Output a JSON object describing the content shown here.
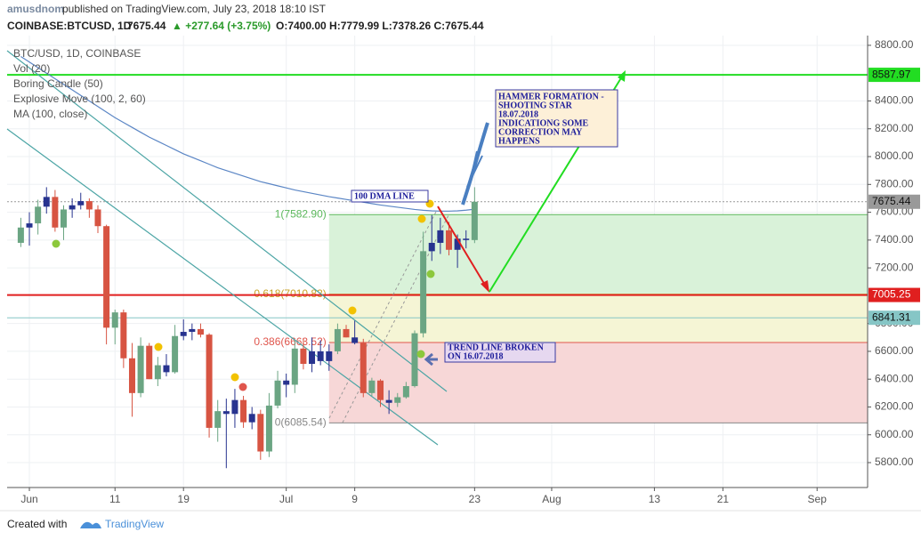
{
  "header": {
    "author": "amusdnom",
    "published": "published on TradingView.com, July 23, 2018 18:10 IST",
    "symbol": "COINBASE:BTCUSD, 1D",
    "last": "7675.44",
    "change": "▲ +277.64 (+3.75%)",
    "ohlc": "O:7400.00 H:7779.99 L:7378.26 C:7675.44"
  },
  "chart_data": {
    "type": "candlestick",
    "legend": [
      "BTC/USD, 1D, COINBASE",
      "Vol (20)",
      "Boring Candle (50)",
      "Explosive Move (100, 2, 60)",
      "MA (100, close)"
    ],
    "x": [
      -1,
      0,
      1,
      2,
      3,
      4,
      5,
      6,
      7,
      8,
      9,
      10,
      11,
      12,
      13,
      14,
      15,
      16,
      17,
      18,
      19,
      20,
      21,
      22,
      23,
      24,
      25,
      26,
      27,
      28,
      29,
      30,
      31,
      32,
      33,
      34,
      35,
      36,
      37,
      38,
      39,
      40,
      41,
      42,
      43,
      44,
      45,
      46,
      47,
      48,
      49,
      50,
      51,
      52
    ],
    "open": [
      7380,
      7490,
      7520,
      7640,
      7710,
      7490,
      7620,
      7650,
      7680,
      7620,
      7500,
      6770,
      6880,
      6550,
      6300,
      6640,
      6400,
      6500,
      6450,
      6710,
      6740,
      6760,
      6720,
      6050,
      6170,
      6150,
      6250,
      6090,
      6150,
      5880,
      6210,
      6390,
      6360,
      6620,
      6510,
      6600,
      6530,
      6600,
      6760,
      6700,
      6660,
      6300,
      6390,
      6250,
      6230,
      6270,
      6350,
      6730,
      7320,
      7380,
      7470,
      7330,
      7410,
      7400
    ],
    "high": [
      7560,
      7600,
      7690,
      7780,
      7760,
      7650,
      7700,
      7740,
      7700,
      7650,
      7510,
      6900,
      6900,
      6660,
      6700,
      6660,
      6560,
      6580,
      6790,
      6830,
      6800,
      6800,
      6730,
      6250,
      6260,
      6330,
      6280,
      6200,
      6180,
      6300,
      6460,
      6440,
      6680,
      6690,
      6700,
      6680,
      6650,
      6800,
      6790,
      6820,
      6690,
      6410,
      6400,
      6320,
      6300,
      6380,
      6750,
      7460,
      7580,
      7560,
      7530,
      7440,
      7470,
      7779.99
    ],
    "low": [
      7350,
      7360,
      7440,
      7590,
      7460,
      7400,
      7560,
      7620,
      7560,
      7450,
      6650,
      6650,
      6480,
      6130,
      6270,
      6400,
      6350,
      6420,
      6440,
      6680,
      6680,
      6700,
      5980,
      5950,
      5760,
      6050,
      6050,
      6040,
      5820,
      5840,
      6190,
      6270,
      6300,
      6470,
      6450,
      6500,
      6460,
      6580,
      6700,
      6650,
      6270,
      6280,
      6200,
      6150,
      6200,
      6260,
      6340,
      6700,
      7250,
      7300,
      7290,
      7200,
      7340,
      7378.26
    ],
    "close": [
      7490,
      7520,
      7640,
      7710,
      7490,
      7620,
      7650,
      7680,
      7620,
      7500,
      6770,
      6880,
      6550,
      6300,
      6640,
      6400,
      6500,
      6450,
      6710,
      6740,
      6760,
      6720,
      6050,
      6170,
      6150,
      6250,
      6090,
      6150,
      5880,
      6210,
      6390,
      6360,
      6620,
      6510,
      6600,
      6530,
      6600,
      6760,
      6700,
      6660,
      6300,
      6390,
      6250,
      6230,
      6270,
      6350,
      6730,
      7320,
      7380,
      7470,
      7330,
      7410,
      7400,
      7675.44
    ],
    "ma": {
      "color": "#5b86c5",
      "values": [
        8720,
        8680,
        8640,
        8600,
        8560,
        8520,
        8480,
        8440,
        8400,
        8360,
        8320,
        8280,
        8245,
        8210,
        8175,
        8140,
        8110,
        8080,
        8050,
        8020,
        7995,
        7970,
        7945,
        7920,
        7900,
        7880,
        7860,
        7840,
        7820,
        7805,
        7790,
        7775,
        7760,
        7748,
        7736,
        7724,
        7712,
        7702,
        7692,
        7682,
        7672,
        7662,
        7652,
        7644,
        7636,
        7628,
        7620,
        7614,
        7610,
        7608,
        7608,
        7610,
        7615,
        7622
      ]
    },
    "up_color": "#6ba583",
    "down_color": "#d75442",
    "boring_color": "#27338f",
    "xlim": [
      -2.6,
      97.9
    ],
    "xticks": [
      {
        "value": 0,
        "label": "Jun"
      },
      {
        "value": 10,
        "label": "11"
      },
      {
        "value": 18,
        "label": "19"
      },
      {
        "value": 30,
        "label": "Jul"
      },
      {
        "value": 38,
        "label": "9"
      },
      {
        "value": 52,
        "label": "23"
      },
      {
        "value": 61,
        "label": "Aug"
      },
      {
        "value": 73,
        "label": "13"
      },
      {
        "value": 81,
        "label": "21"
      },
      {
        "value": 92,
        "label": "Sep"
      }
    ],
    "ylim": [
      5621,
      8870
    ],
    "yticks": [
      {
        "value": 5800,
        "label": "5800.00"
      },
      {
        "value": 6000,
        "label": "6000.00"
      },
      {
        "value": 6200,
        "label": "6200.00"
      },
      {
        "value": 6400,
        "label": "6400.00"
      },
      {
        "value": 6600,
        "label": "6600.00"
      },
      {
        "value": 6800,
        "label": "6800.00"
      },
      {
        "value": 7200,
        "label": "7200.00"
      },
      {
        "value": 7400,
        "label": "7400.00"
      },
      {
        "value": 7600,
        "label": "7600.00"
      },
      {
        "value": 7800,
        "label": "7800.00"
      },
      {
        "value": 8000,
        "label": "8000.00"
      },
      {
        "value": 8200,
        "label": "8200.00"
      },
      {
        "value": 8400,
        "label": "8400.00"
      },
      {
        "value": 8800,
        "label": "8800.00"
      }
    ],
    "grid": true,
    "fib_start": 35,
    "fib": [
      {
        "label": "1(7582.90)",
        "value": 7582.9,
        "color": "#5cb85c",
        "fill": "#d9f2d9"
      },
      {
        "label": "0.618(7010.83)",
        "value": 7010.83,
        "color": "#c9a227",
        "fill": "#f5f5d5"
      },
      {
        "label": "0.386(6663.52)",
        "value": 6663.52,
        "color": "#e0564d",
        "fill": "#f7d7d7"
      },
      {
        "label": "0(6085.54)",
        "value": 6085.54,
        "color": "#888888"
      }
    ],
    "hlines": [
      {
        "value": 8587.97,
        "label": "8587.97",
        "color": "#22dd22",
        "text_color": "#111111",
        "width": 2,
        "dash": "none"
      },
      {
        "value": 7675.44,
        "label": "7675.44",
        "color": "#999999",
        "text_color": "#111111",
        "width": 1,
        "dash": "2 2"
      },
      {
        "value": 7005.25,
        "label": "7005.25",
        "color": "#e01f1f",
        "text_color": "#ffffff",
        "width": 2,
        "dash": "none"
      },
      {
        "value": 6841.31,
        "label": "6841.31",
        "color": "#86c6c6",
        "text_color": "#111111",
        "width": 1,
        "dash": "none"
      }
    ],
    "annotations": {
      "hammer": [
        "HAMMER FORMATION -",
        "SHOOTING STAR",
        "18.07.2018",
        "INDICATIONG SOME",
        "CORRECTION MAY",
        "HAPPENS"
      ],
      "dma": "100 DMA LINE",
      "trend": [
        "TREND LINE BROKEN",
        "ON 16.07.2018"
      ]
    }
  },
  "footer": {
    "created": "Created with",
    "brand": "TradingView"
  }
}
